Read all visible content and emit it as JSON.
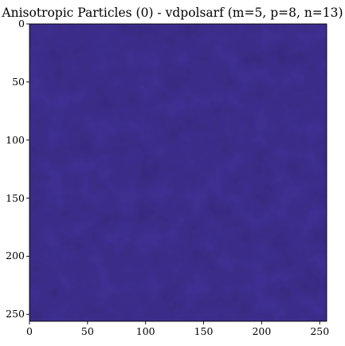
{
  "title": "Anisotropic Particles (0) - vdpolsarf (m=5, p=8, n=13)",
  "colors": {
    "base": "#43339a",
    "variation_light": "#4a3aa6",
    "variation_dark": "#3b2d8e",
    "frame": "#000000"
  },
  "chart_data": {
    "type": "heatmap",
    "title": "Anisotropic Particles (0) - vdpolsarf (m=5, p=8, n=13)",
    "xlabel": "",
    "ylabel": "",
    "xlim": [
      0,
      256
    ],
    "ylim": [
      256,
      0
    ],
    "x_ticks": [
      0,
      50,
      100,
      150,
      200,
      250
    ],
    "y_ticks": [
      0,
      50,
      100,
      150,
      200,
      250
    ],
    "x_tick_labels": [
      "0",
      "50",
      "100",
      "150",
      "200",
      "250"
    ],
    "y_tick_labels": [
      "0",
      "50",
      "100",
      "150",
      "200",
      "250"
    ],
    "y_inverted": true,
    "grid": false,
    "legend": "none",
    "dominant_color": "#43339a",
    "description_of_field": "nearly uniform blue-purple noise"
  }
}
